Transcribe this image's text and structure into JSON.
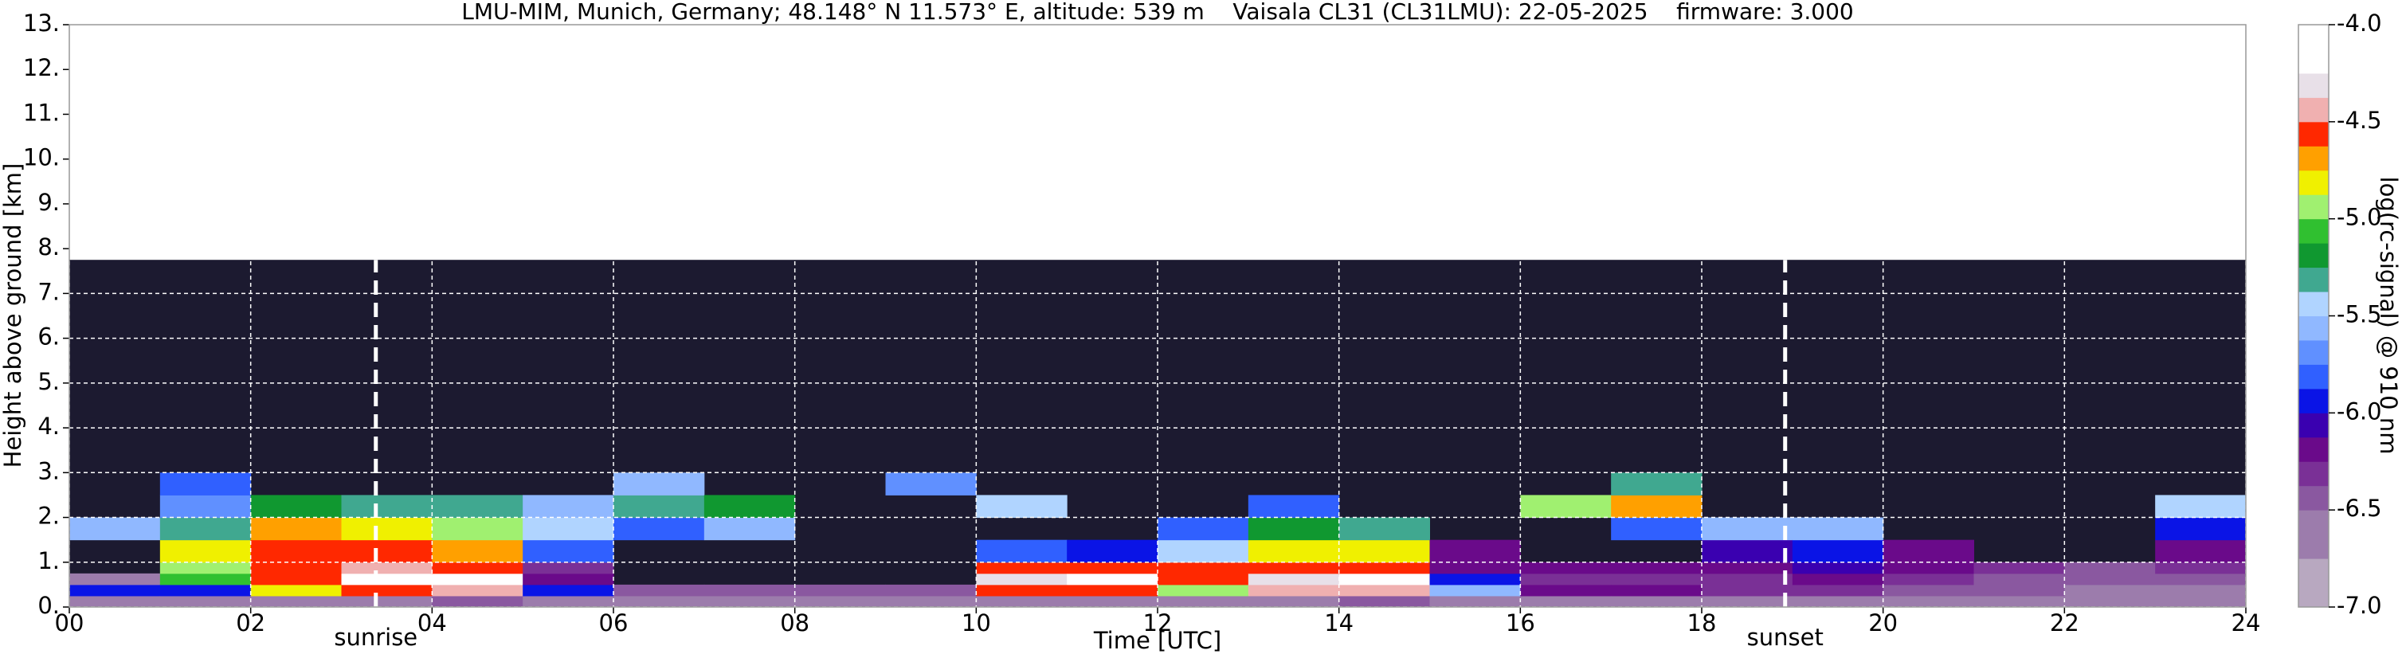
{
  "chart_data": {
    "type": "heatmap",
    "title": "LMU-MIM, Munich, Germany; 48.148° N 11.573° E, altitude: 539 m    Vaisala CL31 (CL31LMU): 22-05-2025    firmware: 3.000",
    "x_label": "Time [UTC]",
    "y_label": "Height above ground [km]",
    "xlim": [
      0,
      24
    ],
    "ylim": [
      0,
      13
    ],
    "xticks": [
      {
        "value": 0,
        "label": "00"
      },
      {
        "value": 2,
        "label": "02"
      },
      {
        "value": 4,
        "label": "04"
      },
      {
        "value": 6,
        "label": "06"
      },
      {
        "value": 8,
        "label": "08"
      },
      10,
      12,
      14,
      16,
      18,
      20,
      22,
      24
    ],
    "yticks": [
      {
        "value": 0,
        "label": "0."
      },
      {
        "value": 1,
        "label": "1."
      },
      {
        "value": 2,
        "label": "2."
      },
      {
        "value": 3,
        "label": "3."
      },
      {
        "value": 4,
        "label": "4."
      },
      {
        "value": 5,
        "label": "5."
      },
      {
        "value": 6,
        "label": "6."
      },
      {
        "value": 7,
        "label": "7."
      },
      {
        "value": 8,
        "label": "8."
      },
      {
        "value": 9,
        "label": "9."
      },
      {
        "value": 10,
        "label": "10."
      },
      {
        "value": 11,
        "label": "11."
      },
      {
        "value": 12,
        "label": "12."
      },
      {
        "value": 13,
        "label": "13."
      }
    ],
    "grid": true,
    "grid_color": "#ffffff",
    "noise_color": "#1c1a30",
    "x_edges": [
      0,
      1,
      2,
      3,
      4,
      5,
      6,
      7,
      8,
      9,
      10,
      11,
      12,
      13,
      14,
      15,
      16,
      17,
      18,
      19,
      20,
      21,
      22,
      23,
      24
    ],
    "y_edges": [
      0,
      0.25,
      0.5,
      0.75,
      1,
      1.5,
      2,
      2.5,
      3,
      3.5,
      4,
      5,
      6,
      7,
      7.75
    ],
    "z": [
      [
        -6.6,
        -5.9,
        -6.6,
        null,
        null,
        -5.6,
        null,
        null,
        null,
        null,
        null,
        null,
        null,
        null
      ],
      [
        -6.6,
        -5.9,
        -5.05,
        -4.95,
        -4.8,
        -5.3,
        -5.7,
        -5.8,
        null,
        null,
        null,
        null,
        null,
        null
      ],
      [
        -6.6,
        -4.8,
        -4.55,
        -4.55,
        -4.6,
        -4.7,
        -5.2,
        null,
        null,
        null,
        null,
        null,
        null,
        null
      ],
      [
        -6.6,
        -4.55,
        -4.2,
        -4.4,
        -4.55,
        -4.8,
        -5.3,
        null,
        null,
        null,
        null,
        null,
        null,
        null
      ],
      [
        -6.5,
        -4.4,
        -4.2,
        -4.55,
        -4.7,
        -5.0,
        -5.3,
        null,
        null,
        null,
        null,
        null,
        null,
        null
      ],
      [
        -6.6,
        -6.0,
        -6.2,
        -6.3,
        -5.8,
        -5.5,
        -5.6,
        null,
        null,
        null,
        null,
        null,
        null,
        null
      ],
      [
        -6.6,
        -6.5,
        null,
        null,
        null,
        -5.8,
        -5.3,
        -5.6,
        null,
        null,
        null,
        null,
        null,
        null
      ],
      [
        -6.6,
        -6.4,
        null,
        null,
        null,
        -5.6,
        -5.2,
        null,
        null,
        null,
        null,
        null,
        null,
        null
      ],
      [
        -6.6,
        -6.4,
        null,
        null,
        null,
        null,
        null,
        null,
        null,
        null,
        null,
        null,
        null,
        null
      ],
      [
        -6.6,
        -6.4,
        null,
        null,
        null,
        null,
        null,
        -5.7,
        null,
        null,
        null,
        null,
        null,
        null
      ],
      [
        -6.6,
        -4.55,
        -4.3,
        -4.55,
        -5.8,
        null,
        -5.4,
        null,
        null,
        null,
        null,
        null,
        null,
        null
      ],
      [
        -6.6,
        -4.55,
        -4.2,
        -4.6,
        -6.0,
        null,
        null,
        null,
        null,
        null,
        null,
        null,
        null,
        null
      ],
      [
        -6.6,
        -4.9,
        -4.55,
        -4.6,
        -5.4,
        -5.8,
        null,
        null,
        null,
        null,
        null,
        null,
        null,
        null
      ],
      [
        -6.6,
        -4.4,
        -4.3,
        -4.55,
        -4.8,
        -5.2,
        -5.8,
        null,
        null,
        null,
        null,
        null,
        null,
        null
      ],
      [
        -6.5,
        -4.4,
        -4.2,
        -4.55,
        -4.8,
        -5.3,
        null,
        null,
        null,
        null,
        null,
        null,
        null,
        null
      ],
      [
        -6.6,
        -5.6,
        -6.0,
        -6.2,
        -6.2,
        null,
        null,
        null,
        null,
        null,
        null,
        null,
        null,
        null
      ],
      [
        -6.7,
        -6.2,
        -6.3,
        -6.2,
        null,
        null,
        -5.0,
        null,
        null,
        null,
        null,
        null,
        null,
        null
      ],
      [
        -6.7,
        -6.2,
        -6.3,
        -6.2,
        null,
        -5.8,
        -4.7,
        -5.3,
        null,
        null,
        null,
        null,
        null,
        null
      ],
      [
        -6.7,
        -6.3,
        -6.3,
        -6.2,
        -6.1,
        -5.6,
        null,
        null,
        null,
        null,
        null,
        null,
        null,
        null
      ],
      [
        -6.6,
        -6.3,
        -6.2,
        -6.1,
        -6.0,
        -5.6,
        null,
        null,
        null,
        null,
        null,
        null,
        null,
        null
      ],
      [
        -6.6,
        -6.5,
        -6.3,
        -6.2,
        -6.2,
        null,
        null,
        null,
        null,
        null,
        null,
        null,
        null,
        null
      ],
      [
        -6.6,
        -6.5,
        -6.4,
        -6.3,
        null,
        null,
        null,
        null,
        null,
        null,
        null,
        null,
        null,
        null
      ],
      [
        -6.7,
        -6.6,
        -6.5,
        -6.4,
        null,
        null,
        null,
        null,
        null,
        null,
        null,
        null,
        null,
        null
      ],
      [
        -6.7,
        -6.6,
        -6.4,
        -6.3,
        -6.2,
        -5.9,
        -5.5,
        null,
        null,
        null,
        null,
        null,
        null,
        null
      ]
    ],
    "annotations": [
      {
        "x": 3.38,
        "label": "sunrise"
      },
      {
        "x": 18.92,
        "label": "sunset"
      }
    ],
    "colorbar": {
      "label": "log(rc-signal) @ 910 nm",
      "levels": [
        -7.0,
        -6.75,
        -6.5,
        -6.375,
        -6.25,
        -6.125,
        -6.0,
        -5.875,
        -5.75,
        -5.625,
        -5.5,
        -5.375,
        -5.25,
        -5.125,
        -5.0,
        -4.875,
        -4.75,
        -4.625,
        -4.5,
        -4.375,
        -4.25,
        -4.0
      ],
      "colors": [
        "#b8a8c0",
        "#9c7cac",
        "#8a58a0",
        "#7a3096",
        "#6a0a8a",
        "#3a00b0",
        "#0a14e6",
        "#3060ff",
        "#6090ff",
        "#90b8ff",
        "#b0d4ff",
        "#40a890",
        "#109830",
        "#30c030",
        "#a0f070",
        "#f0f000",
        "#ffa000",
        "#ff2800",
        "#f0b0b0",
        "#e8e0e8",
        "#ffffff"
      ],
      "ticks": [
        {
          "value": -4,
          "label": "-4.0"
        },
        -4.5,
        {
          "value": -5,
          "label": "-5.0"
        },
        -5.5,
        {
          "value": -6,
          "label": "-6.0"
        },
        -6.5,
        {
          "value": -7,
          "label": "-7.0"
        }
      ]
    }
  }
}
